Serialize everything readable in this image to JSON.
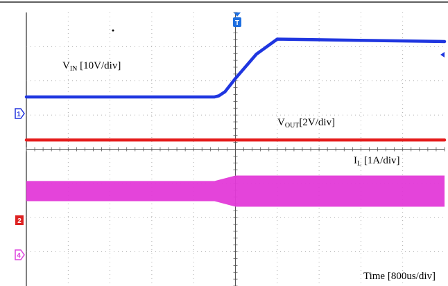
{
  "chart_data": {
    "type": "line",
    "title": "",
    "xlabel": "Time [800us/div]",
    "x_divisions": 10,
    "y_divisions": 8,
    "grid": true,
    "trigger_marker": "T",
    "channel_markers": [
      {
        "label": "1",
        "color": "#2233dd"
      },
      {
        "label": "2",
        "color": "#dd2222"
      },
      {
        "label": "4",
        "color": "#dd44dd"
      }
    ],
    "series": [
      {
        "name_main": "V",
        "name_sub": "IN",
        "name_scale": " [10V/div]",
        "color": "#1f36e0",
        "x_div": [
          0,
          4.5,
          4.6,
          4.75,
          5.0,
          5.5,
          6.0,
          10
        ],
        "y_div": [
          5.53,
          5.53,
          5.56,
          5.68,
          6.07,
          6.78,
          7.22,
          7.15
        ]
      },
      {
        "name_main": "V",
        "name_sub": "OUT",
        "name_scale": "[2V/div]",
        "color": "#e51b1b",
        "x_div": [
          0,
          10
        ],
        "y_div": [
          4.27,
          4.27
        ]
      },
      {
        "name_main": "I",
        "name_sub": "L",
        "name_scale": " [1A/div]",
        "color": "#e33ad8",
        "x_div": [
          0,
          4.5,
          5.0,
          10
        ],
        "band_top": [
          3.07,
          3.07,
          3.23,
          3.23
        ],
        "band_bottom": [
          2.48,
          2.48,
          2.32,
          2.32
        ]
      }
    ]
  }
}
